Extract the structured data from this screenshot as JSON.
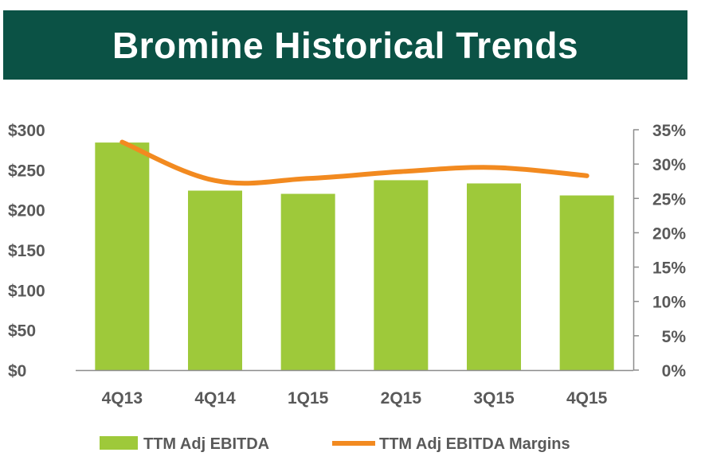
{
  "title": "Bromine Historical Trends",
  "colors": {
    "banner": "#0b5245",
    "bar": "#9ec93a",
    "line": "#f28a20",
    "text": "#595959",
    "axis": "#8c8c8c"
  },
  "chart_data": {
    "type": "bar",
    "categories": [
      "4Q13",
      "4Q14",
      "1Q15",
      "2Q15",
      "3Q15",
      "4Q15"
    ],
    "series": [
      {
        "name": "TTM Adj EBITDA",
        "type": "bar",
        "axis": "left",
        "values": [
          284,
          224,
          220,
          237,
          233,
          218
        ]
      },
      {
        "name": "TTM Adj EBITDA Margins",
        "type": "line",
        "axis": "right",
        "values": [
          33.2,
          27.6,
          27.9,
          28.9,
          29.5,
          28.3
        ]
      }
    ],
    "y_left": {
      "ticks": [
        "$0",
        "$50",
        "$100",
        "$150",
        "$200",
        "$250",
        "$300"
      ],
      "ylim": [
        0,
        300
      ]
    },
    "y_right": {
      "ticks": [
        "0%",
        "5%",
        "10%",
        "15%",
        "20%",
        "25%",
        "30%",
        "35%"
      ],
      "ylim": [
        0,
        35
      ]
    },
    "grid": false,
    "legend": "bottom"
  }
}
